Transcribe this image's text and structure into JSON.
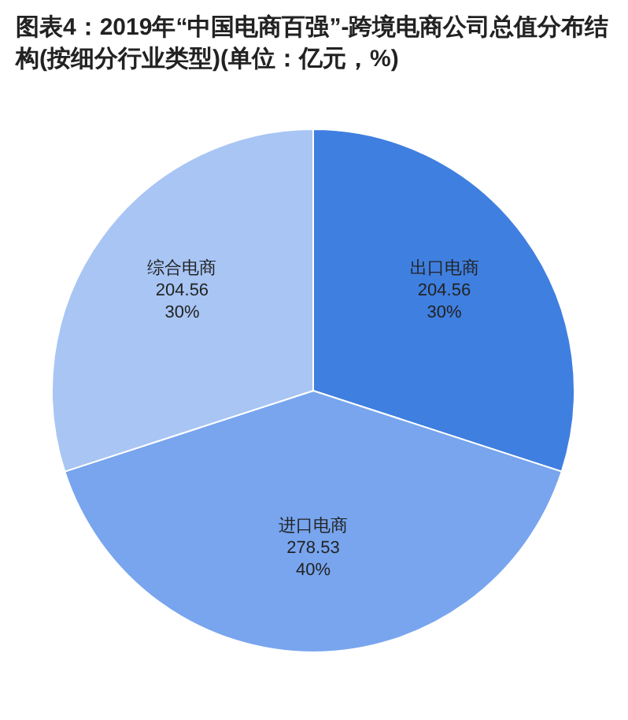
{
  "chart_data": {
    "type": "pie",
    "title": "图表4：2019年“中国电商百强”-跨境电商公司总值分布结构(按细分行业类型)(单位：亿元，%)",
    "categories": [
      "出口电商",
      "进口电商",
      "综合电商"
    ],
    "values": [
      30,
      40,
      30
    ],
    "value_labels": [
      "204.56\n30%",
      "278.53\n40%",
      "204.56\n30%"
    ],
    "colors": [
      "#3f7fe0",
      "#78a5ee",
      "#a8c5f4"
    ]
  }
}
